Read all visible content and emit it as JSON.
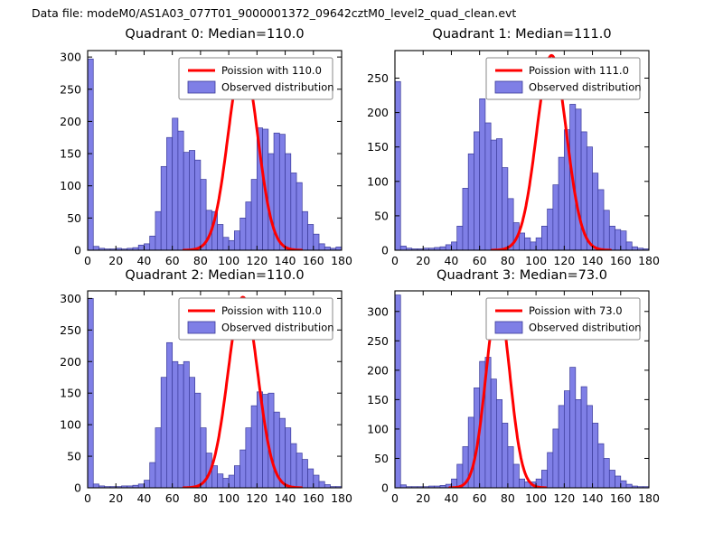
{
  "figure": {
    "title": "Data file: modeM0/AS1A03_077T01_9000001372_09642cztM0_level2_quad_clean.evt",
    "background": "#ffffff"
  },
  "style": {
    "bar_fill": "#7f7fe6",
    "bar_edge": "#3a3a99",
    "curve_color": "#ff0000",
    "axes_color": "#000000",
    "legend_border": "#8a8a8a"
  },
  "chart_data": [
    {
      "type": "histogram",
      "title": "Quadrant 0: Median=110.0",
      "legend": {
        "curve_label": "Poission with 110.0",
        "hist_label": "Observed distribution"
      },
      "xlim": [
        0,
        180
      ],
      "ylim": [
        0,
        310
      ],
      "xticks": [
        0,
        20,
        40,
        60,
        80,
        100,
        120,
        140,
        160,
        180
      ],
      "yticks": [
        0,
        50,
        100,
        150,
        200,
        250,
        300
      ],
      "bin_start": 0,
      "bin_width": 4,
      "heights": [
        297,
        6,
        3,
        2,
        2,
        3,
        2,
        3,
        4,
        8,
        10,
        22,
        60,
        130,
        175,
        205,
        185,
        152,
        155,
        140,
        110,
        62,
        60,
        40,
        20,
        15,
        30,
        50,
        75,
        110,
        190,
        188,
        150,
        182,
        180,
        150,
        120,
        105,
        60,
        40,
        25,
        10,
        5,
        3,
        5
      ],
      "curve": {
        "shape": "poisson",
        "mu": 110.0,
        "peak": 295
      }
    },
    {
      "type": "histogram",
      "title": "Quadrant 1: Median=111.0",
      "legend": {
        "curve_label": "Poission with 111.0",
        "hist_label": "Observed distribution"
      },
      "xlim": [
        0,
        180
      ],
      "ylim": [
        0,
        290
      ],
      "xticks": [
        0,
        20,
        40,
        60,
        80,
        100,
        120,
        140,
        160,
        180
      ],
      "yticks": [
        0,
        50,
        100,
        150,
        200,
        250
      ],
      "bin_start": 0,
      "bin_width": 4,
      "heights": [
        245,
        6,
        3,
        2,
        2,
        3,
        3,
        4,
        5,
        8,
        12,
        35,
        90,
        140,
        172,
        220,
        185,
        160,
        162,
        120,
        75,
        40,
        25,
        18,
        12,
        18,
        35,
        60,
        95,
        135,
        175,
        212,
        205,
        172,
        150,
        112,
        88,
        58,
        35,
        30,
        28,
        12,
        5,
        3,
        2
      ],
      "curve": {
        "shape": "poisson",
        "mu": 111.0,
        "peak": 283
      }
    },
    {
      "type": "histogram",
      "title": "Quadrant 2: Median=110.0",
      "legend": {
        "curve_label": "Poission with 110.0",
        "hist_label": "Observed distribution"
      },
      "xlim": [
        0,
        180
      ],
      "ylim": [
        0,
        312
      ],
      "xticks": [
        0,
        20,
        40,
        60,
        80,
        100,
        120,
        140,
        160,
        180
      ],
      "yticks": [
        0,
        50,
        100,
        150,
        200,
        250,
        300
      ],
      "bin_start": 0,
      "bin_width": 4,
      "heights": [
        300,
        6,
        3,
        2,
        2,
        2,
        3,
        3,
        4,
        6,
        12,
        40,
        95,
        175,
        230,
        200,
        195,
        200,
        175,
        150,
        95,
        55,
        35,
        22,
        15,
        20,
        35,
        60,
        95,
        130,
        152,
        148,
        150,
        120,
        110,
        95,
        70,
        55,
        45,
        30,
        20,
        10,
        5,
        2,
        2
      ],
      "curve": {
        "shape": "poisson",
        "mu": 110.0,
        "peak": 302
      }
    },
    {
      "type": "histogram",
      "title": "Quadrant 3: Median=73.0",
      "legend": {
        "curve_label": "Poission with 73.0",
        "hist_label": "Observed distribution"
      },
      "xlim": [
        0,
        180
      ],
      "ylim": [
        0,
        335
      ],
      "xticks": [
        0,
        20,
        40,
        60,
        80,
        100,
        120,
        140,
        160,
        180
      ],
      "yticks": [
        0,
        50,
        100,
        150,
        200,
        250,
        300
      ],
      "bin_start": 0,
      "bin_width": 4,
      "heights": [
        328,
        5,
        2,
        2,
        2,
        2,
        3,
        3,
        4,
        6,
        15,
        40,
        70,
        120,
        170,
        215,
        222,
        185,
        150,
        110,
        70,
        40,
        15,
        10,
        10,
        15,
        30,
        60,
        100,
        140,
        165,
        205,
        150,
        172,
        140,
        110,
        75,
        50,
        30,
        20,
        12,
        6,
        3,
        2,
        2
      ],
      "curve": {
        "shape": "poisson",
        "mu": 73.0,
        "peak": 316
      }
    }
  ]
}
